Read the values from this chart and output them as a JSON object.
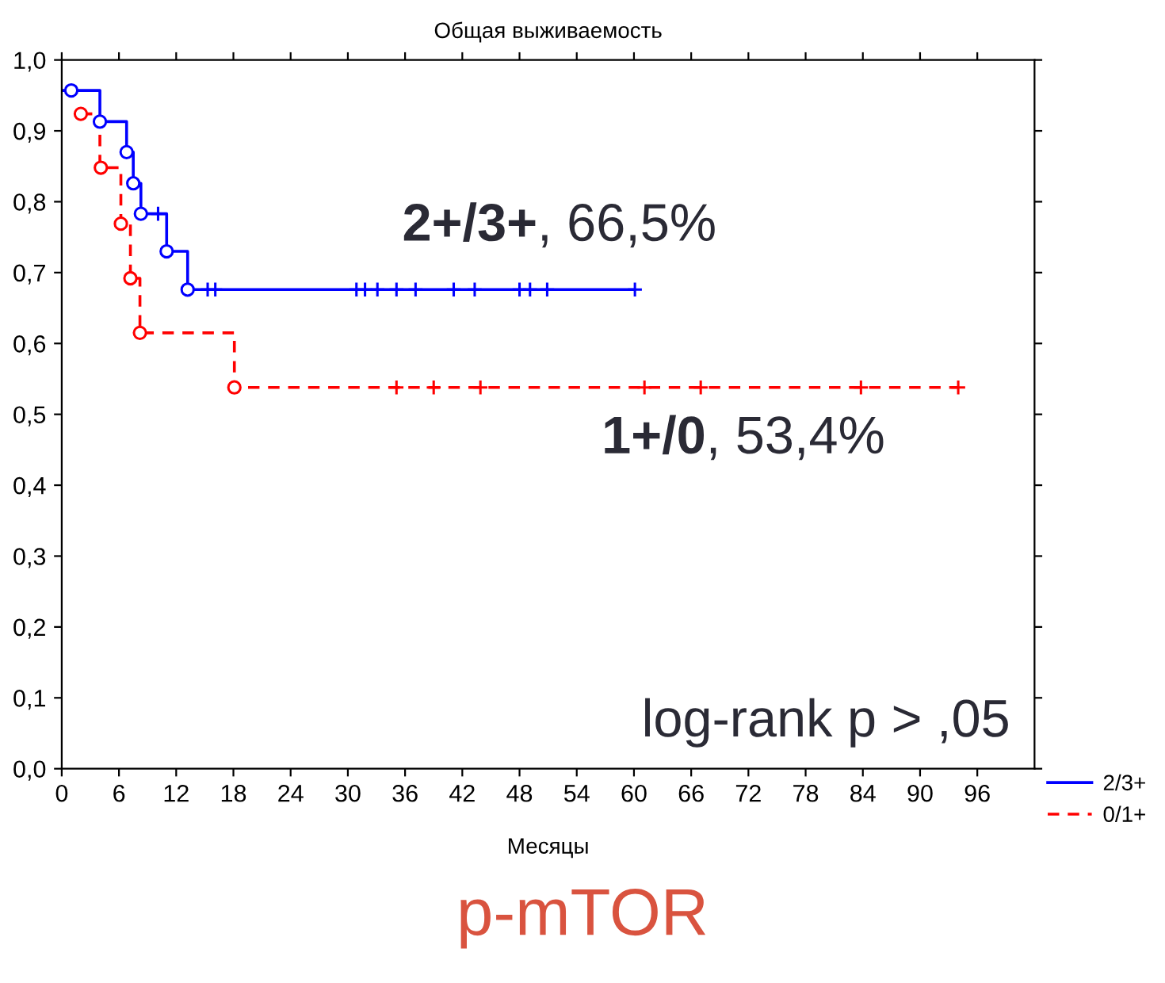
{
  "chart_data": {
    "type": "step",
    "title": "Общая выживаемость",
    "xlabel": "Месяцы",
    "xlim": [
      0,
      102
    ],
    "xticks": [
      0,
      6,
      12,
      18,
      24,
      30,
      36,
      42,
      48,
      54,
      60,
      66,
      72,
      78,
      84,
      90,
      96
    ],
    "ylim": [
      0,
      1
    ],
    "yticks": [
      {
        "value": 0,
        "label": "0,0"
      },
      {
        "value": 0.1,
        "label": "0,1"
      },
      {
        "value": 0.2,
        "label": "0,2"
      },
      {
        "value": 0.3,
        "label": "0,3"
      },
      {
        "value": 0.4,
        "label": "0,4"
      },
      {
        "value": 0.5,
        "label": "0,5"
      },
      {
        "value": 0.6,
        "label": "0,6"
      },
      {
        "value": 0.7,
        "label": "0,7"
      },
      {
        "value": 0.8,
        "label": "0,8"
      },
      {
        "value": 0.9,
        "label": "0,9"
      },
      {
        "value": 1,
        "label": "1,0"
      }
    ],
    "grid": false,
    "legend": "bottom right",
    "series": [
      {
        "name": "2/3+",
        "color": "#0000ff",
        "line_style": "solid",
        "marker": "none",
        "x": [
          0,
          4,
          6.8,
          7.5,
          8.3,
          11,
          13.2,
          60
        ],
        "values": [
          0.957,
          0.913,
          0.87,
          0.826,
          0.783,
          0.73,
          0.676,
          0.676
        ]
      },
      {
        "name": "0/1+",
        "color": "#ff0000",
        "line_style": "dashed",
        "marker": "none",
        "x": [
          2,
          4,
          6.2,
          7.2,
          8.2,
          18.1,
          94
        ],
        "values": [
          0.924,
          0.848,
          0.769,
          0.692,
          0.615,
          0.538,
          0.538
        ]
      },
      {
        "color": "#0000ff",
        "type": "scatter",
        "marker": "circle",
        "x": [
          1,
          4,
          6.8,
          7.5,
          8.3,
          11,
          13.2
        ],
        "values": [
          0.957,
          0.913,
          0.87,
          0.826,
          0.783,
          0.73,
          0.676
        ]
      },
      {
        "color": "#ff0000",
        "type": "scatter",
        "marker": "circle",
        "x": [
          2,
          4.1,
          6.2,
          7.2,
          8.2,
          18.1
        ],
        "values": [
          0.924,
          0.848,
          0.769,
          0.692,
          0.615,
          0.538
        ]
      },
      {
        "color": "#0000ff",
        "type": "scatter",
        "marker": "cross",
        "x": [
          10.1,
          15.3,
          16.1,
          30.9,
          31.8,
          33.1,
          35.1,
          37.1,
          41.1,
          43.3,
          48.0,
          49.1,
          50.9,
          60.1
        ],
        "values": [
          0.783,
          0.676,
          0.676,
          0.676,
          0.676,
          0.676,
          0.676,
          0.676,
          0.676,
          0.676,
          0.676,
          0.676,
          0.676,
          0.676
        ]
      },
      {
        "color": "#ff0000",
        "type": "scatter",
        "marker": "cross",
        "x": [
          35.1,
          39.0,
          43.9,
          61.1,
          67.0,
          83.8,
          94.0
        ],
        "values": [
          0.538,
          0.538,
          0.538,
          0.538,
          0.538,
          0.538,
          0.538
        ]
      }
    ],
    "annotations": [
      "2+/3+",
      ", 66,5%",
      "1+/0",
      ", 53,4%",
      "log-rank p > ,05",
      "p-mTOR"
    ]
  }
}
